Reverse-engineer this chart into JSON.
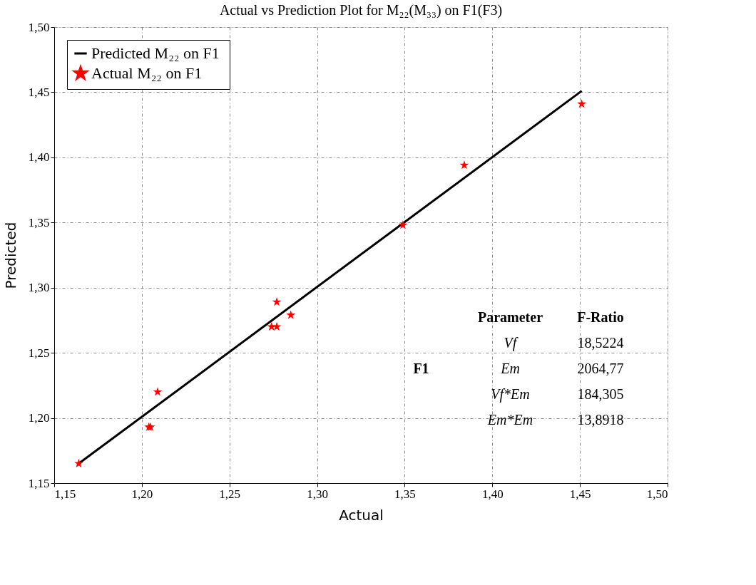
{
  "chart_data": {
    "type": "scatter",
    "title": "Actual vs Prediction Plot for M₂₂(M₃₃) on F1(F3)",
    "xlabel": "Actual",
    "ylabel": "Predicted",
    "series": [
      {
        "name": "Predicted M₂₂  on F1",
        "type": "line",
        "color": "#000000",
        "x": [
          1.164,
          1.451
        ],
        "values": [
          1.165,
          1.451
        ],
        "marker": "none"
      },
      {
        "name": "Actual M₂₂ on F1",
        "color": "#ff0000",
        "marker": "star",
        "x": [
          1.164,
          1.204,
          1.205,
          1.209,
          1.274,
          1.277,
          1.277,
          1.285,
          1.349,
          1.384,
          1.451
        ],
        "values": [
          1.165,
          1.193,
          1.193,
          1.22,
          1.27,
          1.27,
          1.289,
          1.279,
          1.348,
          1.394,
          1.441
        ]
      }
    ],
    "xlim": [
      1.15,
      1.5
    ],
    "ylim": [
      1.15,
      1.5
    ],
    "xticks": [
      {
        "value": 1.15,
        "label": "1,15"
      },
      {
        "value": 1.2,
        "label": "1,20"
      },
      {
        "value": 1.25,
        "label": "1,25"
      },
      {
        "value": 1.3,
        "label": "1,30"
      },
      {
        "value": 1.35,
        "label": "1,35"
      },
      {
        "value": 1.4,
        "label": "1,40"
      },
      {
        "value": 1.45,
        "label": "1,45"
      },
      {
        "value": 1.5,
        "label": "1,50"
      }
    ],
    "yticks": [
      {
        "value": 1.15,
        "label": "1,15"
      },
      {
        "value": 1.2,
        "label": "1,20"
      },
      {
        "value": 1.25,
        "label": "1,25"
      },
      {
        "value": 1.3,
        "label": "1,30"
      },
      {
        "value": 1.35,
        "label": "1,35"
      },
      {
        "value": 1.4,
        "label": "1,40"
      },
      {
        "value": 1.45,
        "label": "1,45"
      },
      {
        "value": 1.5,
        "label": "1,50"
      }
    ],
    "grid": true,
    "legend": "top left",
    "annotations": [
      "F1",
      "Parameter",
      "F-Ratio",
      "Vf",
      "18,5224",
      "Em",
      "2064,77",
      "Vf*Em",
      "184,305",
      "Em*Em",
      "13,8918"
    ]
  }
}
